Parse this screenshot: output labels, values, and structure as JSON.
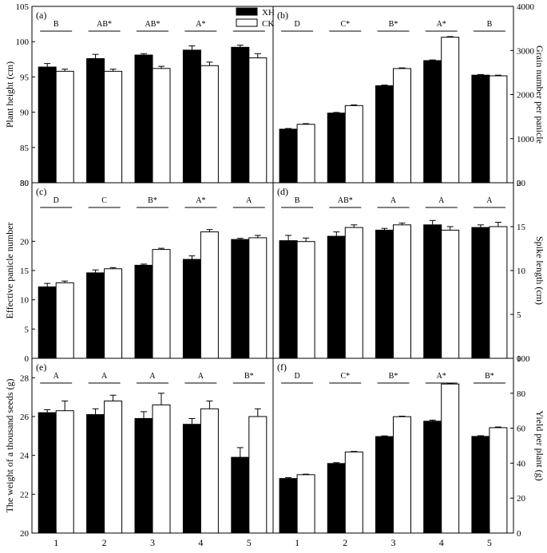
{
  "legend": {
    "position": "top-center",
    "entries": [
      {
        "label": "XH",
        "color": "#000000"
      },
      {
        "label": "CK",
        "color": "#ffffff"
      }
    ]
  },
  "x_tick_labels": [
    "1",
    "2",
    "3",
    "4",
    "5"
  ],
  "chart_data": [
    {
      "type": "bar",
      "panel_label": "(a)",
      "ylabel": "Plant height (cm)",
      "axis_side": "left",
      "ylim": [
        80,
        105
      ],
      "yticks": [
        80,
        85,
        90,
        95,
        100,
        105
      ],
      "categories": [
        "1",
        "2",
        "3",
        "4",
        "5"
      ],
      "series": [
        {
          "name": "XH",
          "values": [
            96.4,
            97.6,
            98.1,
            98.8,
            99.2
          ],
          "errors": [
            0.5,
            0.6,
            0.2,
            0.6,
            0.3
          ]
        },
        {
          "name": "CK",
          "values": [
            95.8,
            95.8,
            96.2,
            96.6,
            97.7
          ],
          "errors": [
            0.3,
            0.3,
            0.3,
            0.5,
            0.6
          ]
        }
      ],
      "annotations": [
        "B",
        "AB*",
        "AB*",
        "A*",
        "A"
      ],
      "grid": false
    },
    {
      "type": "bar",
      "panel_label": "(b)",
      "ylabel": "Grain number per panicle",
      "axis_side": "right",
      "ylim": [
        0,
        4000
      ],
      "yticks": [
        0,
        1000,
        2000,
        3000,
        4000
      ],
      "categories": [
        "1",
        "2",
        "3",
        "4",
        "5"
      ],
      "series": [
        {
          "name": "XH",
          "values": [
            1215,
            1580,
            2200,
            2770,
            2440
          ],
          "errors": [
            15,
            15,
            15,
            15,
            15
          ]
        },
        {
          "name": "CK",
          "values": [
            1325,
            1750,
            2590,
            3300,
            2425
          ],
          "errors": [
            15,
            15,
            15,
            15,
            15
          ]
        }
      ],
      "annotations": [
        "D",
        "C*",
        "B*",
        "A*",
        "B"
      ],
      "grid": false
    },
    {
      "type": "bar",
      "panel_label": "(c)",
      "ylabel": "Effective panicle number",
      "axis_side": "left",
      "ylim": [
        0,
        30
      ],
      "yticks": [
        0,
        5,
        10,
        15,
        20,
        30
      ],
      "categories": [
        "1",
        "2",
        "3",
        "4",
        "5"
      ],
      "series": [
        {
          "name": "XH",
          "values": [
            12.2,
            14.6,
            15.9,
            16.9,
            20.3
          ],
          "errors": [
            0.6,
            0.5,
            0.2,
            0.6,
            0.2
          ]
        },
        {
          "name": "CK",
          "values": [
            12.9,
            15.3,
            18.6,
            21.6,
            20.6
          ],
          "errors": [
            0.3,
            0.2,
            0.2,
            0.4,
            0.4
          ]
        }
      ],
      "annotations": [
        "D",
        "C",
        "B*",
        "A*",
        "A"
      ],
      "grid": false
    },
    {
      "type": "bar",
      "panel_label": "(d)",
      "ylabel": "Spike length (cm)",
      "axis_side": "right",
      "ylim": [
        0,
        20
      ],
      "yticks": [
        0,
        5,
        10,
        15,
        20
      ],
      "categories": [
        "1",
        "2",
        "3",
        "4",
        "5"
      ],
      "series": [
        {
          "name": "XH",
          "values": [
            13.4,
            13.9,
            14.6,
            15.2,
            14.9
          ],
          "errors": [
            0.6,
            0.5,
            0.2,
            0.5,
            0.3
          ]
        },
        {
          "name": "CK",
          "values": [
            13.3,
            14.9,
            15.2,
            14.6,
            15.0
          ],
          "errors": [
            0.4,
            0.3,
            0.2,
            0.4,
            0.5
          ]
        }
      ],
      "annotations": [
        "B",
        "AB*",
        "A",
        "A",
        "A"
      ],
      "grid": false
    },
    {
      "type": "bar",
      "panel_label": "(e)",
      "ylabel": "The weight of a thousand seeds (g)",
      "axis_side": "left",
      "ylim": [
        20,
        29
      ],
      "yticks": [
        20,
        22,
        24,
        26,
        28
      ],
      "categories": [
        "1",
        "2",
        "3",
        "4",
        "5"
      ],
      "series": [
        {
          "name": "XH",
          "values": [
            26.2,
            26.1,
            25.9,
            25.6,
            23.9
          ],
          "errors": [
            0.15,
            0.3,
            0.35,
            0.3,
            0.5
          ]
        },
        {
          "name": "CK",
          "values": [
            26.3,
            26.8,
            26.6,
            26.4,
            26.0
          ],
          "errors": [
            0.5,
            0.3,
            0.6,
            0.4,
            0.4
          ]
        }
      ],
      "annotations": [
        "A",
        "A",
        "A",
        "A",
        "B*"
      ],
      "grid": false
    },
    {
      "type": "bar",
      "panel_label": "(f)",
      "ylabel": "Yield per plant (g)",
      "axis_side": "right",
      "ylim": [
        0,
        100
      ],
      "yticks": [
        0,
        20,
        40,
        60,
        80,
        100
      ],
      "categories": [
        "1",
        "2",
        "3",
        "4",
        "5"
      ],
      "series": [
        {
          "name": "XH",
          "values": [
            31.2,
            39.8,
            55.2,
            64.0,
            55.3
          ],
          "errors": [
            0.5,
            0.5,
            0.4,
            0.6,
            0.4
          ]
        },
        {
          "name": "CK",
          "values": [
            33.4,
            46.4,
            66.6,
            85.3,
            60.3
          ],
          "errors": [
            0.3,
            0.3,
            0.3,
            0.3,
            0.4
          ]
        }
      ],
      "annotations": [
        "D",
        "C*",
        "B*",
        "A*",
        "B*"
      ],
      "grid": false
    }
  ]
}
